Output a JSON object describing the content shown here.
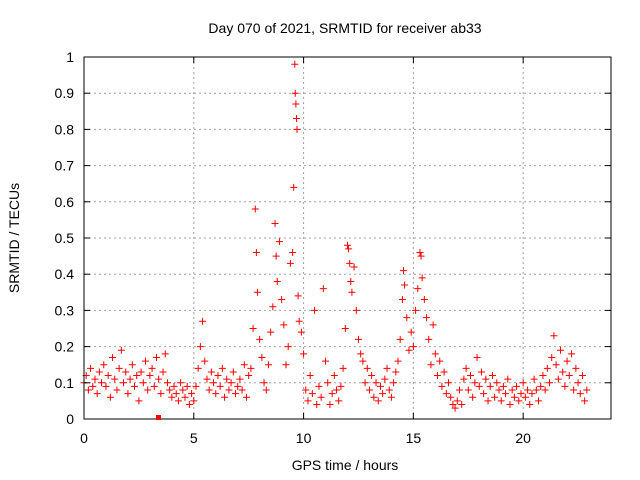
{
  "chart_data": {
    "type": "scatter",
    "title": "Day 070 of 2021, SRMTID for receiver ab33",
    "xlabel": "GPS time / hours",
    "ylabel": "SRMTID / TECUs",
    "xlim": [
      0,
      24
    ],
    "ylim": [
      0,
      1
    ],
    "xticks": [
      "0",
      "5",
      "10",
      "15",
      "20"
    ],
    "xtick_values": [
      0,
      5,
      10,
      15,
      20
    ],
    "yticks": [
      "0",
      "0.1",
      "0.2",
      "0.3",
      "0.4",
      "0.5",
      "0.6",
      "0.7",
      "0.8",
      "0.9",
      "1"
    ],
    "ytick_values": [
      0,
      0.1,
      0.2,
      0.3,
      0.4,
      0.5,
      0.6,
      0.7,
      0.8,
      0.9,
      1
    ],
    "grid": true,
    "marker": "plus",
    "color": "#ff0000",
    "series": [
      {
        "name": "SRMTID",
        "points": [
          [
            0.0,
            0.1
          ],
          [
            0.1,
            0.12
          ],
          [
            0.2,
            0.08
          ],
          [
            0.3,
            0.14
          ],
          [
            0.4,
            0.09
          ],
          [
            0.5,
            0.11
          ],
          [
            0.6,
            0.07
          ],
          [
            0.7,
            0.13
          ],
          [
            0.8,
            0.1
          ],
          [
            0.9,
            0.15
          ],
          [
            1.0,
            0.09
          ],
          [
            1.1,
            0.12
          ],
          [
            1.2,
            0.06
          ],
          [
            1.3,
            0.17
          ],
          [
            1.4,
            0.11
          ],
          [
            1.5,
            0.08
          ],
          [
            1.6,
            0.14
          ],
          [
            1.7,
            0.19
          ],
          [
            1.8,
            0.1
          ],
          [
            1.9,
            0.13
          ],
          [
            2.0,
            0.07
          ],
          [
            2.1,
            0.11
          ],
          [
            2.2,
            0.15
          ],
          [
            2.3,
            0.09
          ],
          [
            2.4,
            0.12
          ],
          [
            2.5,
            0.05
          ],
          [
            2.6,
            0.13
          ],
          [
            2.7,
            0.1
          ],
          [
            2.8,
            0.16
          ],
          [
            2.9,
            0.08
          ],
          [
            3.0,
            0.12
          ],
          [
            3.1,
            0.14
          ],
          [
            3.2,
            0.09
          ],
          [
            3.3,
            0.17
          ],
          [
            3.4,
            0.11
          ],
          [
            3.5,
            0.07
          ],
          [
            3.6,
            0.13
          ],
          [
            3.7,
            0.18
          ],
          [
            3.8,
            0.1
          ],
          [
            3.9,
            0.08
          ],
          [
            4.0,
            0.06
          ],
          [
            4.1,
            0.09
          ],
          [
            4.2,
            0.07
          ],
          [
            4.3,
            0.05
          ],
          [
            4.4,
            0.1
          ],
          [
            4.5,
            0.08
          ],
          [
            4.6,
            0.06
          ],
          [
            4.7,
            0.09
          ],
          [
            4.8,
            0.04
          ],
          [
            4.9,
            0.07
          ],
          [
            5.0,
            0.05
          ],
          [
            5.1,
            0.09
          ],
          [
            5.2,
            0.14
          ],
          [
            5.3,
            0.2
          ],
          [
            5.4,
            0.27
          ],
          [
            5.5,
            0.16
          ],
          [
            5.6,
            0.11
          ],
          [
            5.7,
            0.08
          ],
          [
            5.8,
            0.13
          ],
          [
            5.9,
            0.1
          ],
          [
            6.0,
            0.07
          ],
          [
            6.1,
            0.12
          ],
          [
            6.2,
            0.09
          ],
          [
            6.3,
            0.14
          ],
          [
            6.4,
            0.06
          ],
          [
            6.5,
            0.11
          ],
          [
            6.6,
            0.08
          ],
          [
            6.7,
            0.1
          ],
          [
            6.8,
            0.13
          ],
          [
            6.9,
            0.07
          ],
          [
            7.0,
            0.09
          ],
          [
            7.1,
            0.11
          ],
          [
            7.2,
            0.08
          ],
          [
            7.3,
            0.15
          ],
          [
            7.4,
            0.06
          ],
          [
            7.5,
            0.12
          ],
          [
            7.6,
            0.14
          ],
          [
            7.7,
            0.25
          ],
          [
            7.8,
            0.58
          ],
          [
            7.85,
            0.46
          ],
          [
            7.9,
            0.35
          ],
          [
            8.0,
            0.22
          ],
          [
            8.1,
            0.17
          ],
          [
            8.2,
            0.1
          ],
          [
            8.3,
            0.08
          ],
          [
            8.4,
            0.15
          ],
          [
            8.5,
            0.24
          ],
          [
            8.6,
            0.31
          ],
          [
            8.7,
            0.54
          ],
          [
            8.75,
            0.45
          ],
          [
            8.8,
            0.38
          ],
          [
            8.9,
            0.49
          ],
          [
            9.0,
            0.33
          ],
          [
            9.1,
            0.26
          ],
          [
            9.2,
            0.15
          ],
          [
            9.3,
            0.2
          ],
          [
            9.4,
            0.43
          ],
          [
            9.5,
            0.46
          ],
          [
            9.55,
            0.64
          ],
          [
            9.6,
            0.98
          ],
          [
            9.62,
            0.9
          ],
          [
            9.65,
            0.87
          ],
          [
            9.68,
            0.83
          ],
          [
            9.7,
            0.8
          ],
          [
            9.75,
            0.34
          ],
          [
            9.8,
            0.27
          ],
          [
            9.9,
            0.24
          ],
          [
            10.0,
            0.18
          ],
          [
            10.1,
            0.08
          ],
          [
            10.2,
            0.05
          ],
          [
            10.3,
            0.12
          ],
          [
            10.4,
            0.07
          ],
          [
            10.5,
            0.3
          ],
          [
            10.6,
            0.04
          ],
          [
            10.7,
            0.09
          ],
          [
            10.8,
            0.06
          ],
          [
            10.9,
            0.36
          ],
          [
            11.0,
            0.16
          ],
          [
            11.1,
            0.1
          ],
          [
            11.2,
            0.04
          ],
          [
            11.3,
            0.07
          ],
          [
            11.4,
            0.12
          ],
          [
            11.5,
            0.08
          ],
          [
            11.6,
            0.05
          ],
          [
            11.7,
            0.09
          ],
          [
            11.8,
            0.14
          ],
          [
            11.9,
            0.25
          ],
          [
            12.0,
            0.48
          ],
          [
            12.05,
            0.47
          ],
          [
            12.1,
            0.43
          ],
          [
            12.15,
            0.38
          ],
          [
            12.2,
            0.35
          ],
          [
            12.3,
            0.42
          ],
          [
            12.4,
            0.3
          ],
          [
            12.5,
            0.22
          ],
          [
            12.6,
            0.18
          ],
          [
            12.7,
            0.16
          ],
          [
            12.8,
            0.1
          ],
          [
            12.9,
            0.14
          ],
          [
            13.0,
            0.08
          ],
          [
            13.1,
            0.12
          ],
          [
            13.2,
            0.06
          ],
          [
            13.3,
            0.1
          ],
          [
            13.4,
            0.05
          ],
          [
            13.5,
            0.09
          ],
          [
            13.6,
            0.07
          ],
          [
            13.7,
            0.11
          ],
          [
            13.8,
            0.14
          ],
          [
            13.9,
            0.08
          ],
          [
            14.0,
            0.06
          ],
          [
            14.1,
            0.1
          ],
          [
            14.2,
            0.13
          ],
          [
            14.3,
            0.16
          ],
          [
            14.4,
            0.22
          ],
          [
            14.5,
            0.33
          ],
          [
            14.55,
            0.41
          ],
          [
            14.6,
            0.37
          ],
          [
            14.7,
            0.28
          ],
          [
            14.8,
            0.19
          ],
          [
            14.9,
            0.24
          ],
          [
            15.0,
            0.2
          ],
          [
            15.1,
            0.3
          ],
          [
            15.2,
            0.36
          ],
          [
            15.3,
            0.46
          ],
          [
            15.35,
            0.45
          ],
          [
            15.4,
            0.39
          ],
          [
            15.5,
            0.33
          ],
          [
            15.6,
            0.28
          ],
          [
            15.7,
            0.22
          ],
          [
            15.8,
            0.15
          ],
          [
            15.9,
            0.26
          ],
          [
            16.0,
            0.18
          ],
          [
            16.1,
            0.12
          ],
          [
            16.2,
            0.16
          ],
          [
            16.3,
            0.09
          ],
          [
            16.4,
            0.13
          ],
          [
            16.5,
            0.07
          ],
          [
            16.6,
            0.1
          ],
          [
            16.7,
            0.06
          ],
          [
            16.8,
            0.04
          ],
          [
            16.9,
            0.03
          ],
          [
            17.0,
            0.05
          ],
          [
            17.1,
            0.08
          ],
          [
            17.2,
            0.04
          ],
          [
            17.3,
            0.11
          ],
          [
            17.4,
            0.14
          ],
          [
            17.5,
            0.08
          ],
          [
            17.6,
            0.12
          ],
          [
            17.7,
            0.06
          ],
          [
            17.8,
            0.1
          ],
          [
            17.9,
            0.17
          ],
          [
            18.0,
            0.09
          ],
          [
            18.1,
            0.13
          ],
          [
            18.2,
            0.07
          ],
          [
            18.3,
            0.11
          ],
          [
            18.4,
            0.05
          ],
          [
            18.5,
            0.09
          ],
          [
            18.6,
            0.12
          ],
          [
            18.7,
            0.06
          ],
          [
            18.8,
            0.1
          ],
          [
            18.9,
            0.08
          ],
          [
            19.0,
            0.05
          ],
          [
            19.1,
            0.09
          ],
          [
            19.2,
            0.07
          ],
          [
            19.3,
            0.11
          ],
          [
            19.4,
            0.04
          ],
          [
            19.5,
            0.08
          ],
          [
            19.6,
            0.06
          ],
          [
            19.7,
            0.09
          ],
          [
            19.8,
            0.05
          ],
          [
            19.9,
            0.07
          ],
          [
            20.0,
            0.1
          ],
          [
            20.1,
            0.06
          ],
          [
            20.2,
            0.08
          ],
          [
            20.3,
            0.04
          ],
          [
            20.4,
            0.07
          ],
          [
            20.5,
            0.11
          ],
          [
            20.6,
            0.08
          ],
          [
            20.7,
            0.05
          ],
          [
            20.8,
            0.09
          ],
          [
            20.9,
            0.12
          ],
          [
            21.0,
            0.08
          ],
          [
            21.1,
            0.14
          ],
          [
            21.2,
            0.1
          ],
          [
            21.3,
            0.17
          ],
          [
            21.4,
            0.23
          ],
          [
            21.5,
            0.15
          ],
          [
            21.6,
            0.11
          ],
          [
            21.7,
            0.19
          ],
          [
            21.8,
            0.13
          ],
          [
            21.9,
            0.09
          ],
          [
            22.0,
            0.16
          ],
          [
            22.1,
            0.12
          ],
          [
            22.2,
            0.18
          ],
          [
            22.3,
            0.08
          ],
          [
            22.4,
            0.14
          ],
          [
            22.5,
            0.1
          ],
          [
            22.6,
            0.07
          ],
          [
            22.7,
            0.12
          ],
          [
            22.8,
            0.05
          ],
          [
            22.9,
            0.08
          ]
        ]
      }
    ]
  }
}
